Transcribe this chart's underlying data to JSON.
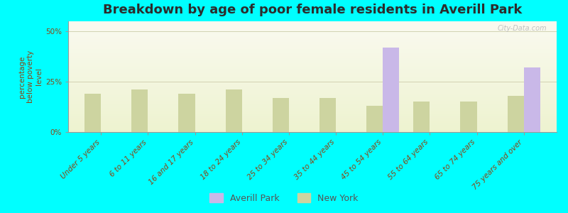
{
  "title": "Breakdown by age of poor female residents in Averill Park",
  "categories": [
    "Under 5 years",
    "6 to 11 years",
    "16 and 17 years",
    "18 to 24 years",
    "25 to 34 years",
    "35 to 44 years",
    "45 to 54 years",
    "55 to 64 years",
    "65 to 74 years",
    "75 years and over"
  ],
  "averill_park": [
    0,
    0,
    0,
    0,
    0,
    0,
    42,
    0,
    0,
    32
  ],
  "new_york": [
    19,
    21,
    19,
    21,
    17,
    17,
    13,
    15,
    15,
    18
  ],
  "bar_width": 0.35,
  "averill_color": "#c9b8e8",
  "new_york_color": "#cdd4a0",
  "background_color": "#00ffff",
  "grad_top": "#fafaf0",
  "grad_bottom": "#eef3d0",
  "ylim": [
    0,
    55
  ],
  "yticks": [
    0,
    25,
    50
  ],
  "ytick_labels": [
    "0%",
    "25%",
    "50%"
  ],
  "ylabel": "percentage\nbelow poverty\nlevel",
  "title_fontsize": 13,
  "tick_fontsize": 7.5,
  "legend_labels": [
    "Averill Park",
    "New York"
  ],
  "watermark": "City-Data.com"
}
